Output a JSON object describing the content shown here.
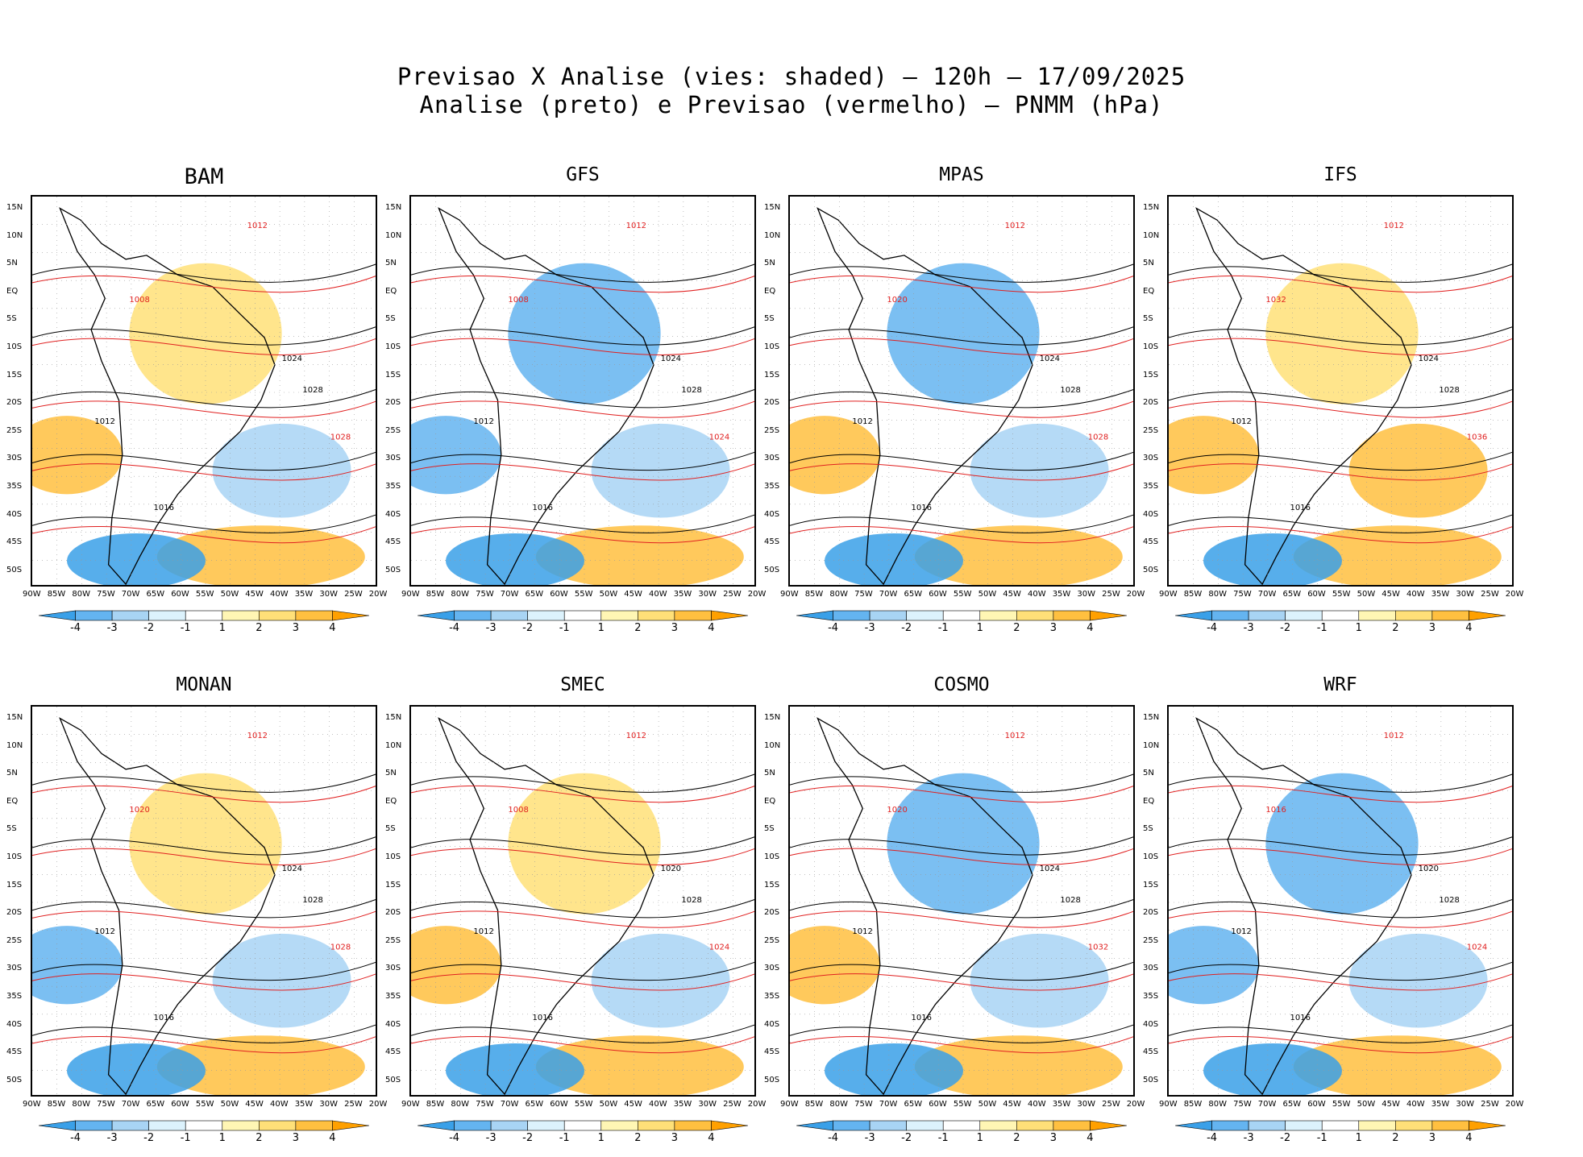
{
  "header": {
    "line1": "Previsao X Analise (vies: shaded) – 120h – 17/09/2025",
    "line2": "Analise (preto) e Previsao (vermelho) – PNMM (hPa)"
  },
  "lat_labels": [
    "15N",
    "10N",
    "5N",
    "EQ",
    "5S",
    "10S",
    "15S",
    "20S",
    "25S",
    "30S",
    "35S",
    "40S",
    "45S",
    "50S"
  ],
  "lon_labels": [
    "90W",
    "85W",
    "80W",
    "75W",
    "70W",
    "65W",
    "60W",
    "55W",
    "50W",
    "45W",
    "40W",
    "35W",
    "30W",
    "25W",
    "20W"
  ],
  "colorbar": {
    "labels": [
      "-4",
      "-3",
      "-2",
      "-1",
      "1",
      "2",
      "3",
      "4"
    ],
    "colors": [
      "#3aa0e8",
      "#64b4f0",
      "#a8d4f4",
      "#dcf2fc",
      "#ffffff",
      "#fff6b4",
      "#ffe078",
      "#ffc040",
      "#ffa000"
    ]
  },
  "panels": [
    {
      "name": "BAM",
      "isobars": [
        {
          "label": "1012",
          "color": "black"
        },
        {
          "label": "1016",
          "color": "black"
        },
        {
          "label": "1024",
          "color": "black"
        },
        {
          "label": "1028",
          "color": "black"
        },
        {
          "label": "1012",
          "color": "red"
        },
        {
          "label": "1008",
          "color": "red"
        },
        {
          "label": "1028",
          "color": "red"
        }
      ]
    },
    {
      "name": "GFS",
      "isobars": [
        {
          "label": "1012",
          "color": "black"
        },
        {
          "label": "1016",
          "color": "black"
        },
        {
          "label": "1024",
          "color": "black"
        },
        {
          "label": "1028",
          "color": "black"
        },
        {
          "label": "1012",
          "color": "red"
        },
        {
          "label": "1008",
          "color": "red"
        },
        {
          "label": "1024",
          "color": "red"
        }
      ]
    },
    {
      "name": "MPAS",
      "isobars": [
        {
          "label": "1012",
          "color": "black"
        },
        {
          "label": "1016",
          "color": "black"
        },
        {
          "label": "1024",
          "color": "black"
        },
        {
          "label": "1028",
          "color": "black"
        },
        {
          "label": "1012",
          "color": "red"
        },
        {
          "label": "1020",
          "color": "red"
        },
        {
          "label": "1028",
          "color": "red"
        }
      ]
    },
    {
      "name": "IFS",
      "isobars": [
        {
          "label": "1012",
          "color": "black"
        },
        {
          "label": "1016",
          "color": "black"
        },
        {
          "label": "1024",
          "color": "black"
        },
        {
          "label": "1028",
          "color": "black"
        },
        {
          "label": "1012",
          "color": "red"
        },
        {
          "label": "1032",
          "color": "red"
        },
        {
          "label": "1036",
          "color": "red"
        }
      ]
    },
    {
      "name": "MONAN",
      "isobars": [
        {
          "label": "1012",
          "color": "black"
        },
        {
          "label": "1016",
          "color": "black"
        },
        {
          "label": "1024",
          "color": "black"
        },
        {
          "label": "1028",
          "color": "black"
        },
        {
          "label": "1012",
          "color": "red"
        },
        {
          "label": "1020",
          "color": "red"
        },
        {
          "label": "1028",
          "color": "red"
        }
      ]
    },
    {
      "name": "SMEC",
      "isobars": [
        {
          "label": "1012",
          "color": "black"
        },
        {
          "label": "1016",
          "color": "black"
        },
        {
          "label": "1020",
          "color": "black"
        },
        {
          "label": "1028",
          "color": "black"
        },
        {
          "label": "1012",
          "color": "red"
        },
        {
          "label": "1008",
          "color": "red"
        },
        {
          "label": "1024",
          "color": "red"
        }
      ]
    },
    {
      "name": "COSMO",
      "isobars": [
        {
          "label": "1012",
          "color": "black"
        },
        {
          "label": "1016",
          "color": "black"
        },
        {
          "label": "1024",
          "color": "black"
        },
        {
          "label": "1028",
          "color": "black"
        },
        {
          "label": "1012",
          "color": "red"
        },
        {
          "label": "1020",
          "color": "red"
        },
        {
          "label": "1032",
          "color": "red"
        }
      ]
    },
    {
      "name": "WRF",
      "isobars": [
        {
          "label": "1012",
          "color": "black"
        },
        {
          "label": "1016",
          "color": "black"
        },
        {
          "label": "1020",
          "color": "black"
        },
        {
          "label": "1028",
          "color": "black"
        },
        {
          "label": "1012",
          "color": "red"
        },
        {
          "label": "1016",
          "color": "red"
        },
        {
          "label": "1024",
          "color": "red"
        }
      ]
    }
  ]
}
